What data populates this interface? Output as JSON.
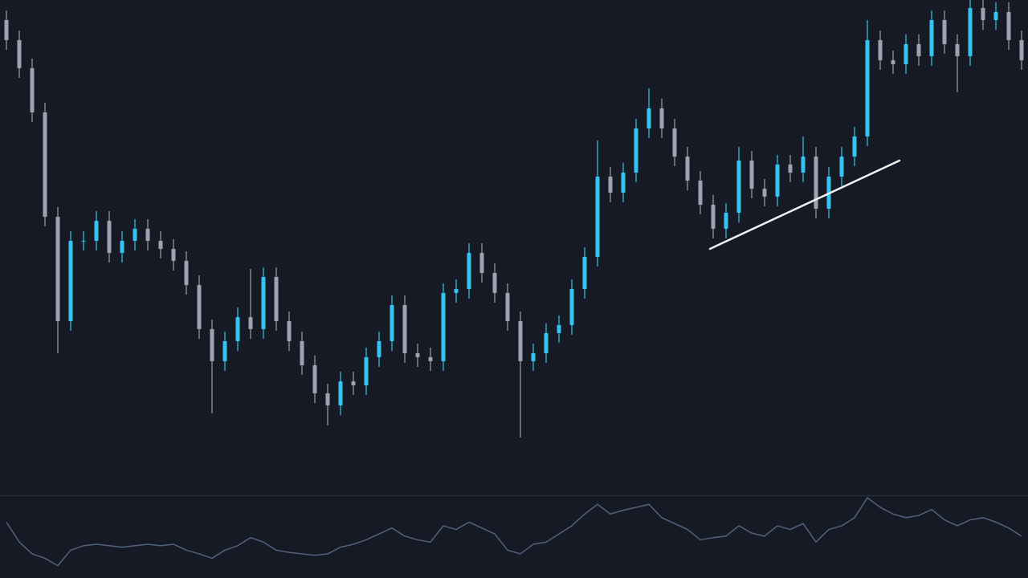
{
  "chart_data": [
    {
      "type": "candlestick",
      "open": [
        590,
        565,
        530,
        475,
        345,
        215,
        315,
        315,
        340,
        300,
        315,
        330,
        315,
        305,
        290,
        260,
        205,
        165,
        190,
        220,
        205,
        270,
        215,
        190,
        160,
        125,
        110,
        140,
        135,
        170,
        190,
        235,
        175,
        170,
        165,
        250,
        255,
        300,
        275,
        250,
        215,
        165,
        175,
        200,
        210,
        255,
        295,
        395,
        375,
        400,
        455,
        480,
        455,
        420,
        390,
        360,
        330,
        350,
        415,
        380,
        370,
        410,
        400,
        420,
        355,
        395,
        420,
        445,
        565,
        540,
        535,
        560,
        545,
        590,
        560,
        545,
        605,
        590,
        600,
        565
      ],
      "high": [
        602,
        577,
        542,
        487,
        357,
        327,
        327,
        352,
        352,
        327,
        342,
        342,
        327,
        317,
        302,
        272,
        217,
        202,
        232,
        280,
        282,
        282,
        227,
        202,
        172,
        137,
        152,
        152,
        182,
        202,
        247,
        247,
        187,
        182,
        262,
        267,
        312,
        312,
        287,
        262,
        227,
        187,
        212,
        222,
        267,
        307,
        440,
        407,
        412,
        467,
        505,
        492,
        467,
        432,
        402,
        372,
        362,
        432,
        427,
        392,
        422,
        422,
        445,
        432,
        407,
        432,
        457,
        590,
        577,
        552,
        572,
        572,
        602,
        602,
        572,
        615,
        615,
        612,
        612,
        577
      ],
      "low": [
        553,
        518,
        463,
        333,
        175,
        203,
        303,
        303,
        288,
        288,
        303,
        303,
        293,
        278,
        248,
        193,
        100,
        153,
        178,
        193,
        193,
        203,
        178,
        148,
        113,
        85,
        98,
        123,
        123,
        158,
        178,
        163,
        158,
        153,
        153,
        238,
        243,
        263,
        238,
        203,
        70,
        153,
        163,
        188,
        198,
        243,
        283,
        363,
        363,
        388,
        443,
        443,
        408,
        378,
        348,
        318,
        318,
        338,
        368,
        358,
        358,
        388,
        388,
        343,
        343,
        383,
        408,
        433,
        528,
        523,
        523,
        533,
        533,
        548,
        500,
        533,
        578,
        578,
        553,
        528
      ],
      "close": [
        565,
        530,
        475,
        345,
        215,
        315,
        315,
        340,
        300,
        315,
        330,
        315,
        305,
        290,
        260,
        205,
        165,
        190,
        220,
        205,
        270,
        215,
        190,
        160,
        125,
        110,
        140,
        135,
        170,
        190,
        235,
        175,
        170,
        165,
        250,
        255,
        300,
        275,
        250,
        215,
        165,
        175,
        200,
        210,
        255,
        295,
        395,
        375,
        400,
        455,
        480,
        455,
        420,
        390,
        360,
        330,
        350,
        415,
        380,
        370,
        410,
        400,
        420,
        355,
        395,
        420,
        445,
        565,
        540,
        535,
        560,
        545,
        590,
        560,
        545,
        605,
        590,
        600,
        565,
        540
      ],
      "up_color": "#35c2f0",
      "down_color": "#9aa4b0",
      "ylim": [
        0,
        615
      ],
      "trendline": {
        "x": [
          54.75,
          69.5
        ],
        "values": [
          305,
          415
        ],
        "color": "#f2f2f2"
      }
    },
    {
      "type": "line",
      "values": [
        67,
        40,
        24,
        18,
        8,
        29,
        35,
        37,
        35,
        33,
        35,
        37,
        35,
        37,
        29,
        24,
        18,
        29,
        35,
        46,
        40,
        29,
        26,
        24,
        22,
        24,
        33,
        37,
        43,
        51,
        59,
        48,
        43,
        40,
        62,
        57,
        67,
        59,
        51,
        29,
        24,
        37,
        40,
        51,
        62,
        78,
        91,
        78,
        83,
        87,
        91,
        73,
        65,
        57,
        43,
        46,
        48,
        62,
        52,
        48,
        62,
        57,
        65,
        40,
        57,
        62,
        73,
        100,
        87,
        78,
        73,
        76,
        84,
        70,
        62,
        70,
        73,
        67,
        59,
        48
      ],
      "color": "#53627c",
      "ylim": [
        0,
        100
      ]
    }
  ]
}
